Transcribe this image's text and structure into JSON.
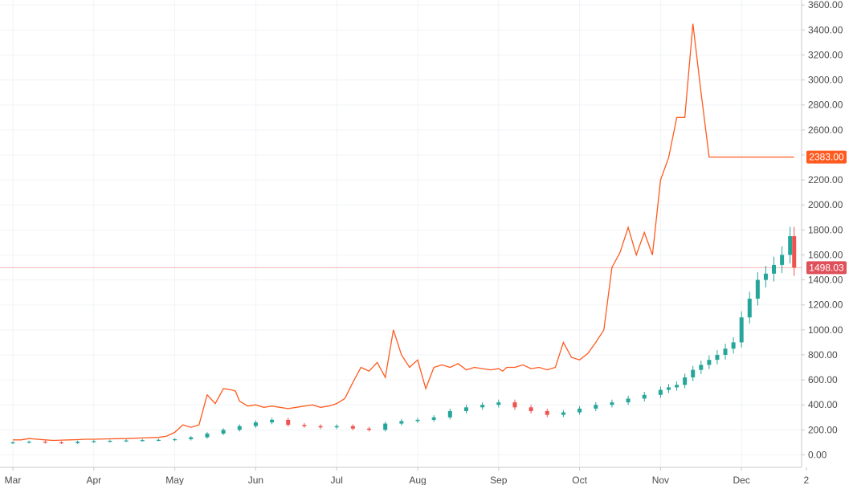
{
  "chart_data": {
    "type": "line",
    "xlabel": "",
    "ylabel": "",
    "ylim": [
      -100,
      3640
    ],
    "y_ticks": [
      "3600.00",
      "3400.00",
      "3200.00",
      "3000.00",
      "2800.00",
      "2600.00",
      "2400.00",
      "2200.00",
      "2000.00",
      "1800.00",
      "1600.00",
      "1400.00",
      "1200.00",
      "1000.00",
      "800.00",
      "600.00",
      "400.00",
      "200.00",
      "0.00"
    ],
    "y_tick_values": [
      3600,
      3400,
      3200,
      3000,
      2800,
      2600,
      2400,
      2200,
      2000,
      1800,
      1600,
      1400,
      1200,
      1000,
      800,
      600,
      400,
      200,
      0
    ],
    "x_ticks": [
      "Mar",
      "Apr",
      "May",
      "Jun",
      "Jul",
      "Aug",
      "Sep",
      "Oct",
      "Nov",
      "Dec",
      "2"
    ],
    "x_tick_positions": [
      0,
      1,
      2,
      3,
      4,
      5,
      6,
      7,
      8,
      9,
      9.8
    ],
    "grid": true,
    "colors": {
      "line": "#ff5a1f",
      "up": "#26a69a",
      "down": "#ef5350",
      "grid": "#f0f3f6",
      "axis": "#c8c8c8",
      "badge_line": "#ff5a1f",
      "badge_candle": "#e0505a",
      "hline": "#f5b5b5"
    },
    "last_values": {
      "line": "2383.00",
      "candle": "1498.03",
      "line_value": 2383,
      "candle_value": 1498
    },
    "line_series": {
      "x": [
        0,
        0.1,
        0.2,
        0.3,
        0.4,
        0.5,
        0.6,
        0.7,
        0.8,
        0.9,
        1,
        1.2,
        1.4,
        1.6,
        1.8,
        1.9,
        2,
        2.1,
        2.2,
        2.3,
        2.4,
        2.5,
        2.6,
        2.7,
        2.75,
        2.8,
        2.9,
        3,
        3.1,
        3.2,
        3.3,
        3.4,
        3.5,
        3.6,
        3.7,
        3.8,
        3.9,
        4,
        4.1,
        4.2,
        4.3,
        4.4,
        4.5,
        4.6,
        4.7,
        4.8,
        4.9,
        5,
        5.1,
        5.2,
        5.3,
        5.4,
        5.5,
        5.6,
        5.7,
        5.8,
        5.9,
        6,
        6.05,
        6.1,
        6.2,
        6.3,
        6.4,
        6.5,
        6.6,
        6.7,
        6.8,
        6.9,
        7,
        7.1,
        7.2,
        7.3,
        7.4,
        7.5,
        7.6,
        7.7,
        7.8,
        7.9,
        8,
        8.1,
        8.2,
        8.3,
        8.4,
        8.5,
        8.6,
        8.7,
        8.8,
        8.9,
        9,
        9.05,
        9.1,
        9.15,
        9.2,
        9.25,
        9.3,
        9.35,
        9.4,
        9.45,
        9.5,
        9.55,
        9.6,
        9.65
      ],
      "y": [
        120,
        120,
        130,
        125,
        120,
        115,
        118,
        120,
        122,
        125,
        125,
        128,
        130,
        135,
        140,
        150,
        180,
        240,
        220,
        240,
        480,
        410,
        530,
        520,
        510,
        430,
        390,
        400,
        380,
        390,
        380,
        370,
        380,
        390,
        400,
        380,
        390,
        410,
        450,
        580,
        700,
        670,
        740,
        620,
        1000,
        800,
        700,
        760,
        530,
        700,
        720,
        700,
        730,
        680,
        700,
        690,
        680,
        690,
        670,
        700,
        700,
        720,
        690,
        700,
        680,
        700,
        900,
        780,
        760,
        810,
        900,
        1000,
        1500,
        1620,
        1820,
        1600,
        1780,
        1600,
        2200,
        2380,
        2700,
        2700,
        3450,
        2900,
        2383,
        2383,
        2383,
        2383,
        2383,
        2383,
        2383,
        2383,
        2383,
        2383,
        2383,
        2383,
        2383,
        2383,
        2383,
        2383,
        2383,
        2383
      ]
    },
    "candle_series": {
      "x": [
        0,
        0.2,
        0.4,
        0.6,
        0.8,
        1,
        1.2,
        1.4,
        1.6,
        1.8,
        2,
        2.2,
        2.4,
        2.6,
        2.8,
        3,
        3.2,
        3.4,
        3.6,
        3.8,
        4,
        4.2,
        4.4,
        4.6,
        4.8,
        5,
        5.2,
        5.4,
        5.6,
        5.8,
        6,
        6.2,
        6.4,
        6.6,
        6.8,
        7,
        7.2,
        7.4,
        7.6,
        7.8,
        8,
        8.1,
        8.2,
        8.3,
        8.4,
        8.5,
        8.6,
        8.7,
        8.8,
        8.9,
        9,
        9.1,
        9.2,
        9.3,
        9.4,
        9.5,
        9.6,
        9.65
      ],
      "close": [
        100,
        105,
        100,
        95,
        105,
        110,
        112,
        115,
        118,
        120,
        125,
        140,
        170,
        200,
        230,
        260,
        280,
        240,
        230,
        220,
        230,
        210,
        200,
        250,
        270,
        280,
        300,
        350,
        380,
        400,
        420,
        380,
        350,
        320,
        340,
        370,
        400,
        420,
        450,
        480,
        520,
        540,
        560,
        620,
        680,
        720,
        760,
        800,
        850,
        900,
        1100,
        1250,
        1400,
        1450,
        1520,
        1600,
        1750,
        1498
      ],
      "open": [
        95,
        100,
        105,
        100,
        95,
        105,
        110,
        112,
        115,
        118,
        120,
        125,
        140,
        170,
        200,
        230,
        260,
        280,
        240,
        230,
        220,
        230,
        210,
        200,
        250,
        270,
        280,
        300,
        350,
        380,
        400,
        420,
        380,
        350,
        320,
        340,
        370,
        400,
        420,
        450,
        480,
        520,
        540,
        560,
        620,
        680,
        720,
        760,
        800,
        850,
        900,
        1100,
        1250,
        1400,
        1450,
        1520,
        1600,
        1750
      ]
    }
  }
}
